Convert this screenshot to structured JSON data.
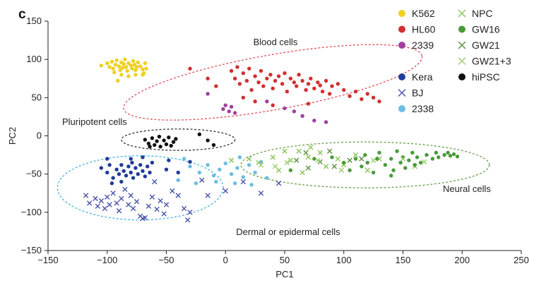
{
  "panel_label": "c",
  "chart_data": {
    "type": "scatter",
    "xlabel": "PC1",
    "ylabel": "PC2",
    "xlim": [
      -150,
      250
    ],
    "ylim": [
      -150,
      150
    ],
    "xticks": [
      -150,
      -100,
      -50,
      0,
      50,
      100,
      150,
      200,
      250
    ],
    "yticks": [
      -150,
      -100,
      -50,
      0,
      50,
      100,
      150
    ],
    "grid": false,
    "legend_position": "top-right",
    "legend_columns": [
      [
        "K562",
        "HL60",
        "2339",
        "",
        "Kera",
        "BJ",
        "2338"
      ],
      [
        "NPC",
        "GW16",
        "GW21",
        "GW21+3",
        "hiPSC"
      ]
    ],
    "clusters": [
      {
        "label": "Blood cells",
        "color": "#e0525a",
        "center": [
          40,
          70
        ],
        "rx": 128,
        "ry": 36,
        "angle": -10
      },
      {
        "label": "Pluripotent cells",
        "color": "#333333",
        "center": [
          -40,
          -5
        ],
        "rx": 48,
        "ry": 14,
        "angle": 0
      },
      {
        "label": "Dermal or epidermal cells",
        "color": "#4ab2df",
        "center": [
          -72,
          -68
        ],
        "rx": 70,
        "ry": 42,
        "angle": 0
      },
      {
        "label": "Neural cells",
        "color": "#6a9e4a",
        "center": [
          118,
          -38
        ],
        "rx": 105,
        "ry": 30,
        "angle": 0
      }
    ],
    "series": [
      {
        "name": "K562",
        "color": "#f0d020",
        "marker": "dot",
        "points": [
          [
            -105,
            92
          ],
          [
            -100,
            95
          ],
          [
            -98,
            90
          ],
          [
            -96,
            97
          ],
          [
            -95,
            88
          ],
          [
            -93,
            93
          ],
          [
            -92,
            99
          ],
          [
            -90,
            91
          ],
          [
            -89,
            86
          ],
          [
            -88,
            96
          ],
          [
            -87,
            89
          ],
          [
            -86,
            94
          ],
          [
            -85,
            100
          ],
          [
            -84,
            90
          ],
          [
            -83,
            85
          ],
          [
            -82,
            95
          ],
          [
            -80,
            92
          ],
          [
            -79,
            88
          ],
          [
            -78,
            98
          ],
          [
            -77,
            93
          ],
          [
            -76,
            86
          ],
          [
            -75,
            90
          ],
          [
            -74,
            96
          ],
          [
            -72,
            91
          ],
          [
            -70,
            87
          ],
          [
            -69,
            82
          ],
          [
            -68,
            95
          ],
          [
            -67,
            88
          ],
          [
            -94,
            83
          ],
          [
            -88,
            80
          ],
          [
            -82,
            78
          ],
          [
            -76,
            80
          ],
          [
            -91,
            72
          ],
          [
            -70,
            80
          ]
        ]
      },
      {
        "name": "HL60",
        "color": "#d03030",
        "marker": "dot",
        "points": [
          [
            -30,
            88
          ],
          [
            -15,
            75
          ],
          [
            -8,
            65
          ],
          [
            5,
            85
          ],
          [
            8,
            75
          ],
          [
            10,
            90
          ],
          [
            12,
            68
          ],
          [
            15,
            82
          ],
          [
            18,
            72
          ],
          [
            20,
            88
          ],
          [
            22,
            60
          ],
          [
            25,
            78
          ],
          [
            28,
            70
          ],
          [
            30,
            85
          ],
          [
            32,
            65
          ],
          [
            35,
            75
          ],
          [
            38,
            80
          ],
          [
            40,
            62
          ],
          [
            42,
            72
          ],
          [
            45,
            78
          ],
          [
            48,
            68
          ],
          [
            50,
            82
          ],
          [
            52,
            58
          ],
          [
            55,
            75
          ],
          [
            58,
            70
          ],
          [
            60,
            65
          ],
          [
            62,
            80
          ],
          [
            65,
            72
          ],
          [
            68,
            60
          ],
          [
            70,
            68
          ],
          [
            72,
            75
          ],
          [
            75,
            62
          ],
          [
            78,
            70
          ],
          [
            80,
            66
          ],
          [
            82,
            58
          ],
          [
            85,
            72
          ],
          [
            88,
            55
          ],
          [
            90,
            65
          ],
          [
            95,
            68
          ],
          [
            100,
            60
          ],
          [
            105,
            52
          ],
          [
            110,
            58
          ],
          [
            115,
            48
          ],
          [
            120,
            55
          ],
          [
            125,
            50
          ],
          [
            130,
            45
          ],
          [
            15,
            50
          ],
          [
            25,
            45
          ],
          [
            40,
            40
          ],
          [
            70,
            42
          ]
        ]
      },
      {
        "name": "2339",
        "color": "#a040a0",
        "marker": "dot",
        "points": [
          [
            -15,
            55
          ],
          [
            -2,
            35
          ],
          [
            0,
            40
          ],
          [
            3,
            32
          ],
          [
            5,
            38
          ],
          [
            8,
            30
          ],
          [
            35,
            45
          ],
          [
            50,
            36
          ],
          [
            58,
            32
          ],
          [
            65,
            26
          ],
          [
            75,
            20
          ],
          [
            85,
            18
          ]
        ]
      },
      {
        "name": "Kera",
        "color": "#1f3c9a",
        "marker": "dot",
        "points": [
          [
            -105,
            -42
          ],
          [
            -100,
            -48
          ],
          [
            -98,
            -38
          ],
          [
            -95,
            -55
          ],
          [
            -92,
            -44
          ],
          [
            -90,
            -50
          ],
          [
            -88,
            -38
          ],
          [
            -86,
            -46
          ],
          [
            -84,
            -52
          ],
          [
            -82,
            -40
          ],
          [
            -80,
            -48
          ],
          [
            -79,
            -35
          ],
          [
            -78,
            -55
          ],
          [
            -76,
            -42
          ],
          [
            -74,
            -50
          ],
          [
            -72,
            -38
          ],
          [
            -70,
            -46
          ],
          [
            -68,
            -53
          ],
          [
            -66,
            -40
          ],
          [
            -64,
            -48
          ],
          [
            -96,
            -62
          ],
          [
            -88,
            -60
          ],
          [
            -80,
            -30
          ],
          [
            -70,
            -28
          ],
          [
            -62,
            -35
          ],
          [
            -50,
            -44
          ],
          [
            -48,
            -32
          ],
          [
            -40,
            -48
          ],
          [
            -30,
            -34
          ],
          [
            -100,
            -30
          ]
        ]
      },
      {
        "name": "BJ",
        "color": "#4a55a8",
        "marker": "x",
        "points": [
          [
            -118,
            -78
          ],
          [
            -115,
            -88
          ],
          [
            -110,
            -82
          ],
          [
            -108,
            -92
          ],
          [
            -105,
            -85
          ],
          [
            -102,
            -95
          ],
          [
            -100,
            -80
          ],
          [
            -98,
            -90
          ],
          [
            -95,
            -75
          ],
          [
            -92,
            -88
          ],
          [
            -90,
            -98
          ],
          [
            -88,
            -82
          ],
          [
            -85,
            -70
          ],
          [
            -82,
            -90
          ],
          [
            -80,
            -78
          ],
          [
            -78,
            -95
          ],
          [
            -75,
            -86
          ],
          [
            -72,
            -105
          ],
          [
            -70,
            -108
          ],
          [
            -68,
            -107
          ],
          [
            -65,
            -92
          ],
          [
            -62,
            -80
          ],
          [
            -58,
            -96
          ],
          [
            -55,
            -85
          ],
          [
            -52,
            -102
          ],
          [
            -50,
            -90
          ],
          [
            -45,
            -72
          ],
          [
            -40,
            -78
          ],
          [
            -35,
            -95
          ],
          [
            -30,
            -100
          ],
          [
            -32,
            -110
          ],
          [
            -15,
            -78
          ],
          [
            0,
            -72
          ],
          [
            15,
            -60
          ],
          [
            30,
            -75
          ],
          [
            45,
            -62
          ],
          [
            -20,
            -58
          ],
          [
            -60,
            -60
          ]
        ]
      },
      {
        "name": "2338",
        "color": "#6bbde3",
        "marker": "dot",
        "points": [
          [
            -30,
            -40
          ],
          [
            -22,
            -48
          ],
          [
            -15,
            -38
          ],
          [
            -10,
            -52
          ],
          [
            -5,
            -44
          ],
          [
            0,
            -36
          ],
          [
            5,
            -50
          ],
          [
            10,
            -42
          ],
          [
            15,
            -54
          ],
          [
            20,
            -38
          ],
          [
            25,
            -48
          ],
          [
            30,
            -34
          ],
          [
            35,
            -55
          ],
          [
            -40,
            -58
          ],
          [
            -25,
            -62
          ],
          [
            -8,
            -60
          ],
          [
            8,
            -62
          ],
          [
            22,
            -64
          ],
          [
            -35,
            -30
          ],
          [
            12,
            -28
          ]
        ]
      },
      {
        "name": "NPC",
        "color": "#8cc45a",
        "marker": "x",
        "points": [
          [
            5,
            -32
          ],
          [
            20,
            -30
          ],
          [
            28,
            -35
          ],
          [
            40,
            -28
          ],
          [
            45,
            -45
          ],
          [
            50,
            -20
          ],
          [
            55,
            -32
          ],
          [
            62,
            -20
          ],
          [
            65,
            -48
          ],
          [
            70,
            -28
          ],
          [
            72,
            -15
          ],
          [
            80,
            -22
          ],
          [
            85,
            -40
          ],
          [
            95,
            -30
          ],
          [
            100,
            -38
          ],
          [
            110,
            -25
          ],
          [
            120,
            -45
          ],
          [
            130,
            -30
          ],
          [
            160,
            -40
          ]
        ]
      },
      {
        "name": "GW16",
        "color": "#4a9a3a",
        "marker": "dot",
        "points": [
          [
            55,
            -45
          ],
          [
            75,
            -30
          ],
          [
            90,
            -28
          ],
          [
            100,
            -35
          ],
          [
            105,
            -45
          ],
          [
            110,
            -30
          ],
          [
            115,
            -40
          ],
          [
            118,
            -25
          ],
          [
            120,
            -35
          ],
          [
            125,
            -48
          ],
          [
            128,
            -30
          ],
          [
            130,
            -22
          ],
          [
            135,
            -38
          ],
          [
            140,
            -30
          ],
          [
            142,
            -45
          ],
          [
            145,
            -20
          ],
          [
            148,
            -35
          ],
          [
            150,
            -28
          ],
          [
            152,
            -42
          ],
          [
            155,
            -32
          ],
          [
            158,
            -22
          ],
          [
            160,
            -38
          ],
          [
            162,
            -28
          ],
          [
            165,
            -35
          ],
          [
            170,
            -25
          ],
          [
            175,
            -30
          ],
          [
            178,
            -22
          ],
          [
            180,
            -28
          ],
          [
            185,
            -25
          ],
          [
            188,
            -22
          ],
          [
            190,
            -26
          ],
          [
            193,
            -24
          ],
          [
            196,
            -27
          ],
          [
            140,
            -52
          ]
        ]
      },
      {
        "name": "GW21",
        "color": "#5a9040",
        "marker": "x",
        "points": [
          [
            60,
            -32
          ],
          [
            68,
            -22
          ],
          [
            70,
            -42
          ],
          [
            80,
            -34
          ],
          [
            88,
            -20
          ],
          [
            92,
            -40
          ],
          [
            105,
            -32
          ],
          [
            115,
            -30
          ]
        ]
      },
      {
        "name": "GW21+3",
        "color": "#9cce70",
        "marker": "x",
        "points": [
          [
            30,
            -38
          ],
          [
            42,
            -40
          ],
          [
            52,
            -35
          ],
          [
            78,
            -32
          ],
          [
            98,
            -45
          ],
          [
            125,
            -32
          ],
          [
            150,
            -30
          ],
          [
            168,
            -34
          ]
        ]
      },
      {
        "name": "hiPSC",
        "color": "#111111",
        "marker": "dot",
        "points": [
          [
            -68,
            -5
          ],
          [
            -65,
            -10
          ],
          [
            -62,
            -3
          ],
          [
            -60,
            -12
          ],
          [
            -58,
            -7
          ],
          [
            -55,
            -14
          ],
          [
            -52,
            -6
          ],
          [
            -50,
            -11
          ],
          [
            -48,
            -2
          ],
          [
            -46,
            -13
          ],
          [
            -44,
            -8
          ],
          [
            -42,
            -4
          ],
          [
            -22,
            2
          ],
          [
            -15,
            -6
          ],
          [
            -10,
            -12
          ],
          [
            -64,
            -14
          ],
          [
            -56,
            -1
          ]
        ]
      }
    ]
  }
}
